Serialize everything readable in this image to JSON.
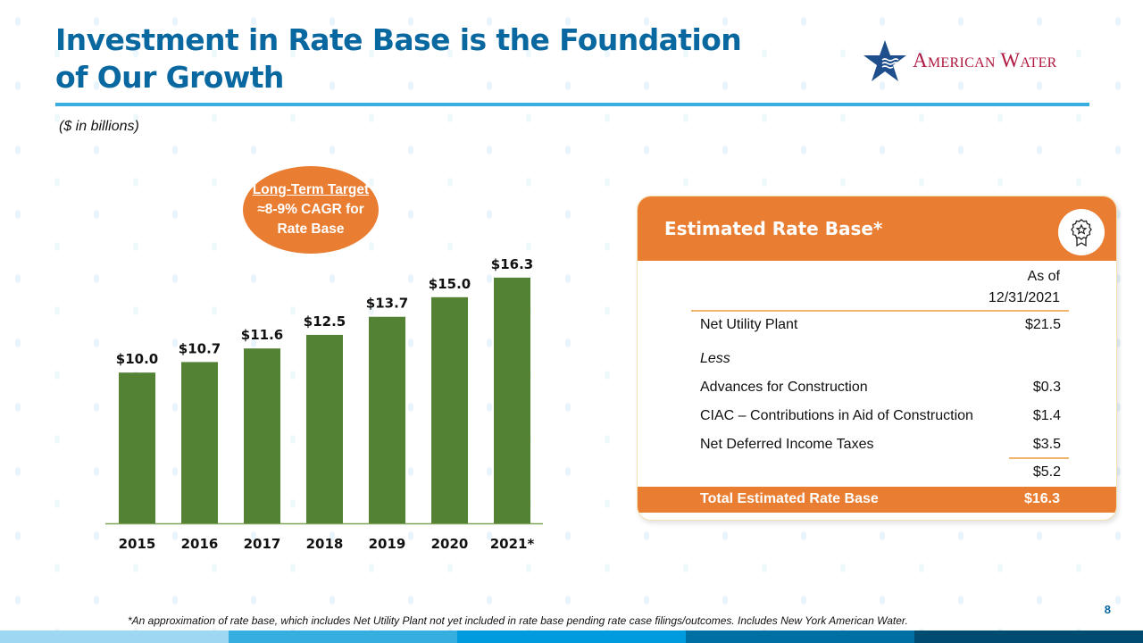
{
  "header": {
    "title_line1": "Investment in Rate Base is the Foundation",
    "title_line2": "of Our Growth",
    "units": "($ in billions)",
    "logo_text": "American Water",
    "logo_icon": "star-with-waves-icon"
  },
  "target_callout": {
    "line1": "Long-Term Target",
    "line2": "≈8-9% CAGR for",
    "line3": "Rate Base"
  },
  "chart_data": {
    "type": "bar",
    "title": "",
    "xlabel": "",
    "ylabel": "",
    "units": "$ in billions",
    "categories": [
      "2015",
      "2016",
      "2017",
      "2018",
      "2019",
      "2020",
      "2021*"
    ],
    "values": [
      10.0,
      10.7,
      11.6,
      12.5,
      13.7,
      15.0,
      16.3
    ],
    "data_labels": [
      "$10.0",
      "$10.7",
      "$11.6",
      "$12.5",
      "$13.7",
      "$15.0",
      "$16.3"
    ],
    "ylim": [
      0,
      17
    ],
    "grid": false,
    "y_axis_visible": false,
    "bar_color": "#548235"
  },
  "rate_base_card": {
    "title": "Estimated Rate Base*",
    "icon": "award-ribbon-icon",
    "column_header_line1": "As of",
    "column_header_line2": "12/31/2021",
    "rows": [
      {
        "label": "Net Utility Plant",
        "value": "$21.5"
      },
      {
        "label": "Less",
        "value": ""
      },
      {
        "label": "Advances for Construction",
        "value": "$0.3"
      },
      {
        "label": "CIAC – Contributions in Aid of Construction",
        "value": "$1.4"
      },
      {
        "label": "Net Deferred Income Taxes",
        "value": "$3.5"
      },
      {
        "label": "",
        "value": "$5.2"
      }
    ],
    "total": {
      "label": "Total Estimated Rate Base",
      "value": "$16.3"
    }
  },
  "footer": {
    "footnote": "*An approximation of rate base, which includes Net Utility Plant not yet included in rate base pending rate case filings/outcomes. Includes New York American Water.",
    "page_number": "8",
    "stripe_colors": [
      "#9dd7f1",
      "#36aee0",
      "#009ade",
      "#006fa3",
      "#004b70"
    ]
  },
  "colors": {
    "title_blue": "#0a68a0",
    "accent_orange": "#e97d32",
    "bar_green": "#548235",
    "logo_red": "#b0183f",
    "logo_navy": "#1f4e8c"
  }
}
